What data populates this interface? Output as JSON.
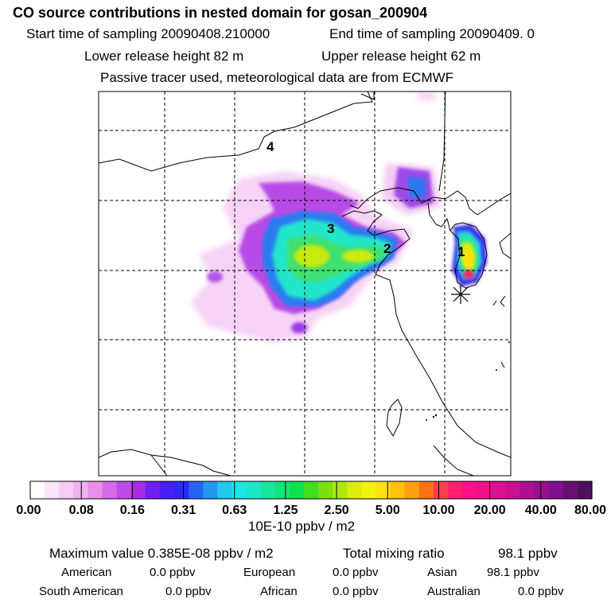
{
  "header": {
    "title": "CO  source contributions in nested domain for gosan_200904",
    "sampling_start": "Start time of sampling 20090408.210000",
    "sampling_end": "End time of sampling 20090409.     0",
    "lower_height": "Lower release height   82 m",
    "upper_height": "Upper release height   62 m",
    "note": "Passive tracer used, meteorological data are from ECMWF"
  },
  "map": {
    "region_labels": [
      "1",
      "2",
      "3",
      "4"
    ]
  },
  "colorbar": {
    "colors": [
      "#ffffff",
      "#fbe6fb",
      "#f6ccf6",
      "#f0b2f0",
      "#e98fe9",
      "#d56be8",
      "#c04ae8",
      "#a52ce8",
      "#6f1ff0",
      "#4a1ef5",
      "#2a2af8",
      "#2464f5",
      "#2497f0",
      "#24c8ee",
      "#1ee6e8",
      "#1ee6c8",
      "#18e6a0",
      "#10e678",
      "#10e050",
      "#40e020",
      "#7ce010",
      "#b0e610",
      "#dcec10",
      "#f4f010",
      "#ffe010",
      "#ffc010",
      "#ffa010",
      "#ff7010",
      "#ff4050",
      "#ff2070",
      "#ff1088",
      "#f0108c",
      "#dc1090",
      "#c81090",
      "#b01090",
      "#981090",
      "#801090",
      "#681070",
      "#501060"
    ],
    "tick_labels": [
      "0.00",
      "0.08",
      "0.16",
      "0.31",
      "0.63",
      "1.25",
      "2.50",
      "5.00",
      "10.00",
      "20.00",
      "40.00",
      "80.00"
    ],
    "unit": "10E-10 ppbv / m2"
  },
  "summary": {
    "max_label": "Maximum value  0.385E-08 ppbv / m2",
    "total_label": "Total mixing ratio",
    "total_value": "98.1 ppbv",
    "regions": [
      {
        "name": "American",
        "value": "0.0 ppbv"
      },
      {
        "name": "European",
        "value": "0.0 ppbv"
      },
      {
        "name": "Asian",
        "value": "98.1 ppbv"
      },
      {
        "name": "South American",
        "value": "0.0 ppbv"
      },
      {
        "name": "African",
        "value": "0.0 ppbv"
      },
      {
        "name": "Australian",
        "value": "0.0 ppbv"
      }
    ]
  }
}
